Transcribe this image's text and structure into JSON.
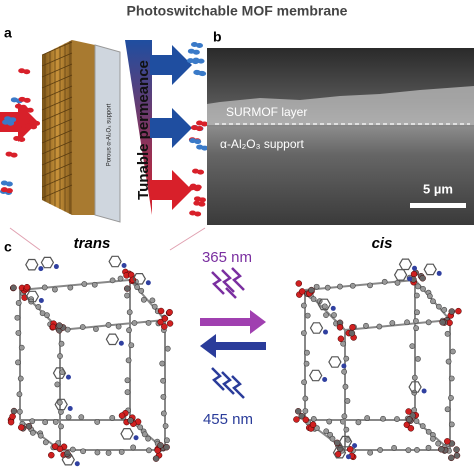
{
  "header": {
    "title": "Photoswitchable MOF membrane"
  },
  "panel_a": {
    "label": "a",
    "support_text": "Porous α-Al₂O₃ support",
    "side_text": "Tunable permeance"
  },
  "panel_b": {
    "label": "b",
    "layer_text": "SURMOF layer",
    "support_text": "α-Al₂O₃ support",
    "scale_text": "5 µm"
  },
  "panel_c": {
    "label": "c",
    "left_title": "trans",
    "right_title": "cis",
    "uv_text": "365 nm",
    "vis_text": "455 nm"
  }
}
